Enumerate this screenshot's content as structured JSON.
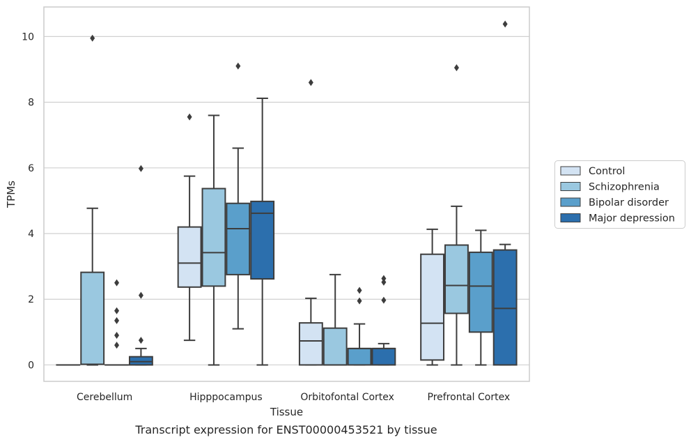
{
  "caption": "Transcript expression for ENST00000453521 by tissue",
  "chart_data": {
    "type": "box",
    "xlabel": "Tissue",
    "ylabel": "TPMs",
    "ylim": [
      -0.5,
      10.9
    ],
    "yticks": [
      0,
      2,
      4,
      6,
      8,
      10
    ],
    "grid": "horizontal",
    "legend_position": "right",
    "categories": [
      "Cerebellum",
      "Hipppocampus",
      "Orbitofontal Cortex",
      "Prefrontal Cortex"
    ],
    "series": [
      {
        "name": "Control",
        "color": "#d3e3f3",
        "boxes": [
          {
            "whislo": 0,
            "q1": 0,
            "med": 0,
            "q3": 0,
            "whishi": 0,
            "fliers": []
          },
          {
            "whislo": 0.75,
            "q1": 2.37,
            "med": 3.1,
            "q3": 4.2,
            "whishi": 5.75,
            "fliers": [
              7.55
            ]
          },
          {
            "whislo": 0,
            "q1": 0,
            "med": 0.73,
            "q3": 1.28,
            "whishi": 2.03,
            "fliers": [
              8.6
            ]
          },
          {
            "whislo": 0,
            "q1": 0.15,
            "med": 1.27,
            "q3": 3.37,
            "whishi": 4.13,
            "fliers": []
          }
        ]
      },
      {
        "name": "Schizophrenia",
        "color": "#9ac8e0",
        "boxes": [
          {
            "whislo": 0,
            "q1": 0.02,
            "med": 0.02,
            "q3": 2.82,
            "whishi": 4.77,
            "fliers": [
              9.95
            ]
          },
          {
            "whislo": 0,
            "q1": 2.4,
            "med": 3.42,
            "q3": 5.37,
            "whishi": 7.6,
            "fliers": []
          },
          {
            "whislo": 0,
            "q1": 0,
            "med": 0,
            "q3": 1.12,
            "whishi": 2.75,
            "fliers": []
          },
          {
            "whislo": 0,
            "q1": 1.57,
            "med": 2.42,
            "q3": 3.65,
            "whishi": 4.83,
            "fliers": [
              9.05
            ]
          }
        ]
      },
      {
        "name": "Bipolar disorder",
        "color": "#5a9fcb",
        "boxes": [
          {
            "whislo": 0,
            "q1": 0,
            "med": 0,
            "q3": 0,
            "whishi": 0,
            "fliers": [
              0.9,
              1.35,
              1.65,
              2.5,
              0.6
            ]
          },
          {
            "whislo": 1.1,
            "q1": 2.75,
            "med": 4.15,
            "q3": 4.92,
            "whishi": 6.6,
            "fliers": [
              9.1
            ]
          },
          {
            "whislo": 0,
            "q1": 0,
            "med": 0.5,
            "q3": 0.5,
            "whishi": 1.25,
            "fliers": [
              1.95,
              2.27
            ]
          },
          {
            "whislo": 0,
            "q1": 1,
            "med": 2.4,
            "q3": 3.43,
            "whishi": 4.1,
            "fliers": []
          }
        ]
      },
      {
        "name": "Major depression",
        "color": "#2c6fad",
        "boxes": [
          {
            "whislo": 0,
            "q1": 0,
            "med": 0.1,
            "q3": 0.25,
            "whishi": 0.5,
            "fliers": [
              0.75,
              2.12,
              5.98
            ]
          },
          {
            "whislo": 0,
            "q1": 2.62,
            "med": 4.62,
            "q3": 4.98,
            "whishi": 8.12,
            "fliers": []
          },
          {
            "whislo": 0,
            "q1": 0,
            "med": 0.5,
            "q3": 0.5,
            "whishi": 0.65,
            "fliers": [
              1.97,
              2.52,
              2.63
            ]
          },
          {
            "whislo": 0,
            "q1": 0,
            "med": 1.72,
            "q3": 3.5,
            "whishi": 3.67,
            "fliers": [
              10.38
            ]
          }
        ]
      }
    ]
  }
}
